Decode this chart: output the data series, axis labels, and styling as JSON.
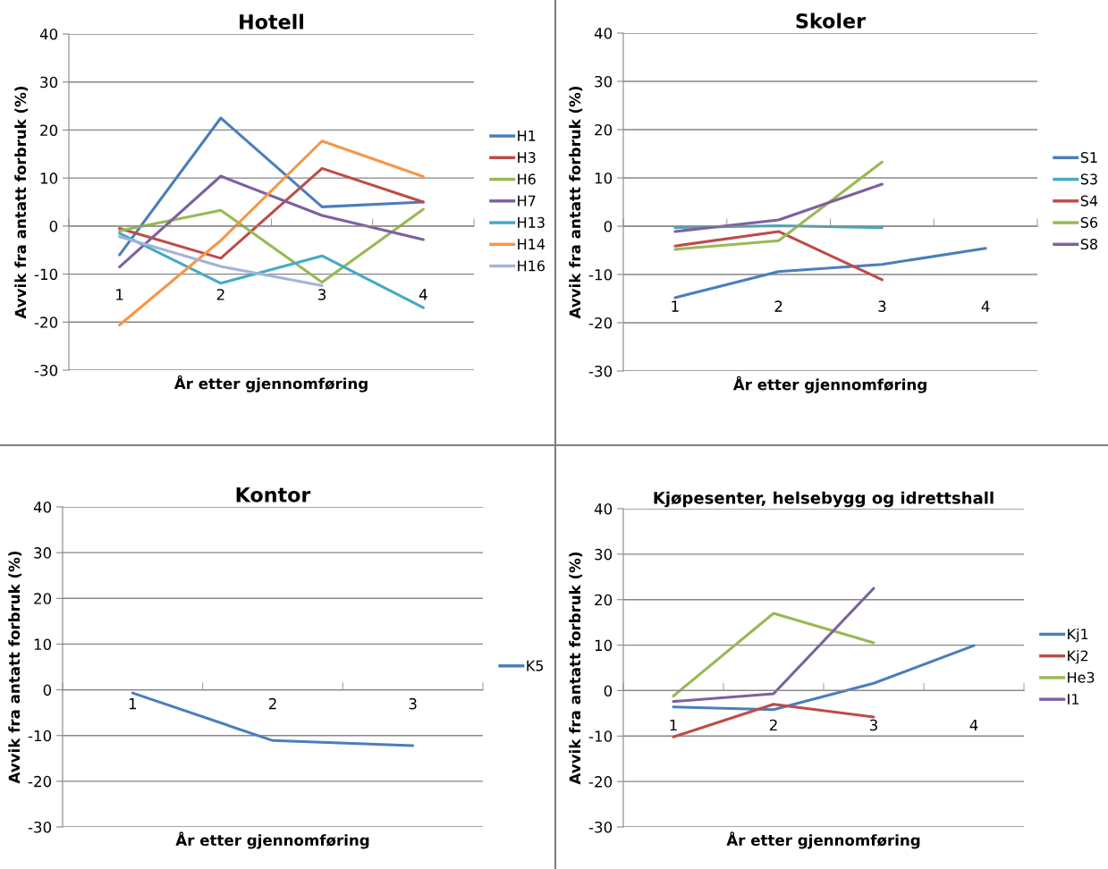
{
  "chart_data": [
    {
      "type": "line",
      "title": "Hotell",
      "xlabel": "År etter gjennomføring",
      "ylabel": "Avvik fra antatt forbruk (%)",
      "categories": [
        "1",
        "2",
        "3",
        "4"
      ],
      "ylim": [
        -30,
        40
      ],
      "yticks": [
        -30,
        -20,
        -10,
        0,
        10,
        20,
        30,
        40
      ],
      "grid": "y",
      "legend": "right",
      "series": [
        {
          "name": "H1",
          "color": "#4a7ebb",
          "values": [
            -6,
            22.5,
            4,
            5
          ]
        },
        {
          "name": "H3",
          "color": "#be4b48",
          "values": [
            -0.5,
            -6.7,
            12,
            5
          ]
        },
        {
          "name": "H6",
          "color": "#98b954",
          "values": [
            -1,
            3.3,
            -11.7,
            3.5
          ]
        },
        {
          "name": "H7",
          "color": "#7d60a0",
          "values": [
            -8.5,
            10.4,
            2.2,
            -2.8
          ]
        },
        {
          "name": "H13",
          "color": "#46aac5",
          "values": [
            -1.5,
            -11.9,
            -6.2,
            -17
          ]
        },
        {
          "name": "H14",
          "color": "#f79646",
          "values": [
            -20.6,
            -3,
            17.7,
            10.3
          ]
        },
        {
          "name": "H16",
          "color": "#a4b3d9",
          "values": [
            -2.2,
            -8.4,
            -12.4,
            null
          ]
        }
      ]
    },
    {
      "type": "line",
      "title": "Skoler",
      "xlabel": "År etter gjennomføring",
      "ylabel": "Avvik fra antatt forbruk (%)",
      "categories": [
        "1",
        "2",
        "3",
        "4"
      ],
      "ylim": [
        -30,
        40
      ],
      "yticks": [
        -30,
        -20,
        -10,
        0,
        10,
        20,
        30,
        40
      ],
      "grid": "y",
      "legend": "right",
      "series": [
        {
          "name": "S1",
          "color": "#4a7ebb",
          "values": [
            -14.8,
            -9.4,
            -7.9,
            -4.6
          ]
        },
        {
          "name": "S3",
          "color": "#46aac5",
          "values": [
            -0.3,
            0.1,
            -0.3,
            null
          ]
        },
        {
          "name": "S4",
          "color": "#be4b48",
          "values": [
            -4.1,
            -1.1,
            -11.1,
            null
          ]
        },
        {
          "name": "S6",
          "color": "#98b954",
          "values": [
            -4.8,
            -3,
            13.3,
            null
          ]
        },
        {
          "name": "S8",
          "color": "#7d60a0",
          "values": [
            -1.1,
            1.3,
            8.7,
            null
          ]
        }
      ]
    },
    {
      "type": "line",
      "title": "Kontor",
      "xlabel": "År etter gjennomføring",
      "ylabel": "Avvik fra antatt forbruk (%)",
      "categories": [
        "1",
        "2",
        "3"
      ],
      "ylim": [
        -30,
        40
      ],
      "yticks": [
        -30,
        -20,
        -10,
        0,
        10,
        20,
        30,
        40
      ],
      "grid": "y",
      "legend": "right",
      "series": [
        {
          "name": "K5",
          "color": "#4a7ebb",
          "values": [
            -0.7,
            -11.1,
            -12.2
          ]
        }
      ]
    },
    {
      "type": "line",
      "title": "Kjøpesenter, helsebygg og idrettshall",
      "xlabel": "År etter gjennomføring",
      "ylabel": "Avvik fra antatt forbruk (%)",
      "categories": [
        "1",
        "2",
        "3",
        "4"
      ],
      "ylim": [
        -30,
        40
      ],
      "yticks": [
        -30,
        -20,
        -10,
        0,
        10,
        20,
        30,
        40
      ],
      "grid": "y",
      "legend": "right",
      "series": [
        {
          "name": "Kj1",
          "color": "#4a7ebb",
          "values": [
            -3.6,
            -4.2,
            1.6,
            9.9
          ]
        },
        {
          "name": "Kj2",
          "color": "#be4b48",
          "values": [
            -10.2,
            -3,
            -5.8,
            null
          ]
        },
        {
          "name": "He3",
          "color": "#98b954",
          "values": [
            -1.2,
            17,
            10.5,
            null
          ]
        },
        {
          "name": "I1",
          "color": "#7d60a0",
          "values": [
            -2.4,
            -0.7,
            22.5,
            null
          ]
        }
      ]
    }
  ]
}
